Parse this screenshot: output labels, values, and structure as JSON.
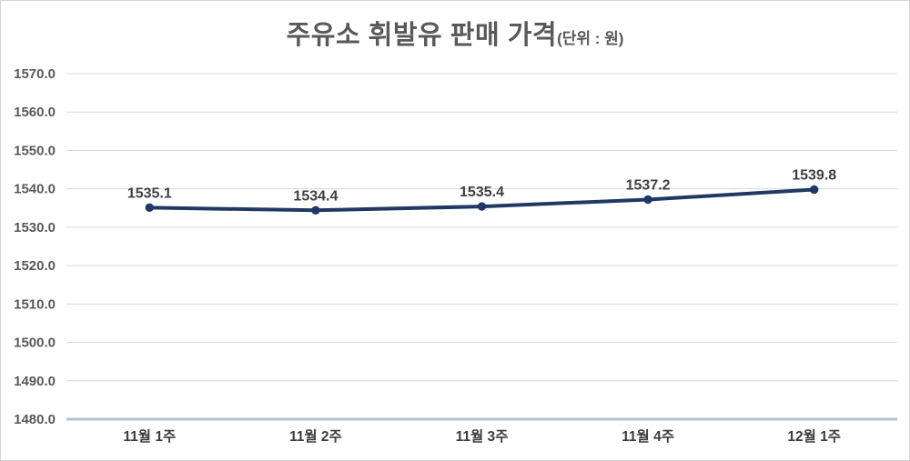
{
  "title": {
    "main": "주유소 휘발유 판매 가격",
    "unit": "(단위 : 원)"
  },
  "chart_data": {
    "type": "line",
    "title": "주유소 휘발유 판매 가격",
    "unit_label": "(단위 : 원)",
    "categories": [
      "11월 1주",
      "11월 2주",
      "11월 3주",
      "11월 4주",
      "12월 1주"
    ],
    "values": [
      1535.1,
      1534.4,
      1535.4,
      1537.2,
      1539.8
    ],
    "data_labels": [
      "1535.1",
      "1534.4",
      "1535.4",
      "1537.2",
      "1539.8"
    ],
    "ylim": [
      1480.0,
      1570.0
    ],
    "ytick_step": 10,
    "ytick_decimals": 1,
    "xlabel": "",
    "ylabel": "",
    "grid": "horizontal",
    "legend": "none",
    "colors": {
      "line": "#1f3864",
      "marker": "#1f3864",
      "data_label": "#404040",
      "ytick_label": "#595959",
      "xtick_label": "#3d3d3d",
      "gridline": "#d9d9d9",
      "axis_line": "#b4c3d6",
      "title": "#595959",
      "background": "#ffffff"
    }
  }
}
